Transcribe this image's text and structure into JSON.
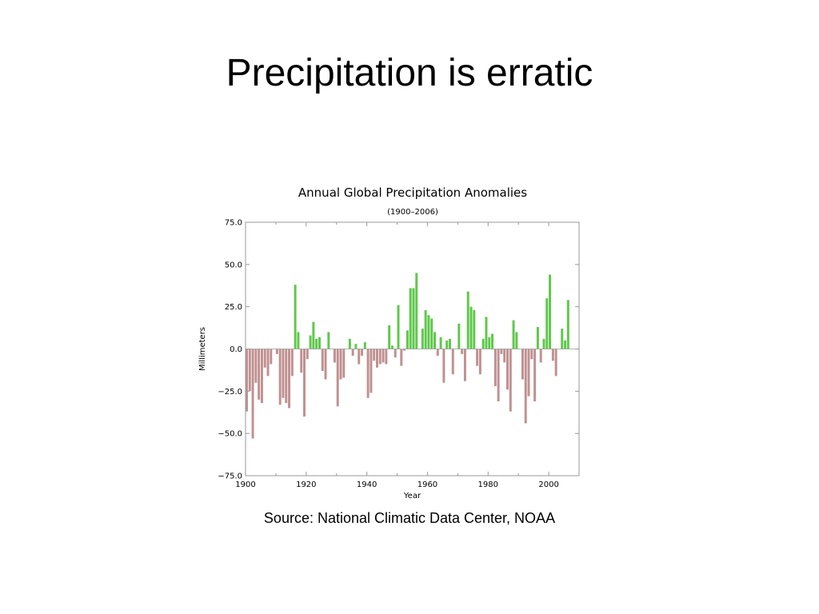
{
  "slide": {
    "title": "Precipitation is erratic",
    "source": "Source: National Climatic Data Center, NOAA"
  },
  "colors": {
    "positive": "#5ec84a",
    "negative": "#c09090",
    "frame": "#999999"
  },
  "chart_data": {
    "type": "bar",
    "title": "Annual Global Precipitation Anomalies",
    "subtitle": "(1900–2006)",
    "xlabel": "Year",
    "ylabel": "Millimeters",
    "xlim": [
      1900,
      2010
    ],
    "ylim": [
      -75,
      75
    ],
    "x_ticks": [
      1900,
      1920,
      1940,
      1960,
      1980,
      2000
    ],
    "y_ticks": [
      "75.0",
      "50.0",
      "25.0",
      "0.0",
      "−25.0",
      "−50.0",
      "−75.0"
    ],
    "y_tick_values": [
      75,
      50,
      25,
      0,
      -25,
      -50,
      -75
    ],
    "grid": false,
    "x_start": 1900,
    "values": [
      -37,
      -25,
      -53,
      -20,
      -30,
      -32,
      -11,
      -16,
      -9,
      0,
      -3,
      -33,
      -29,
      -32,
      -35,
      -16,
      38,
      10,
      -14,
      -40,
      -6,
      8,
      16,
      6,
      7,
      -13,
      -18,
      10,
      0,
      -8,
      -34,
      -18,
      -17,
      0,
      6,
      -4,
      3,
      -9,
      -4,
      4,
      -29,
      -26,
      -7,
      -11,
      -9,
      -8,
      -9,
      14,
      2,
      -5,
      26,
      -10,
      -1,
      11,
      36,
      36,
      45,
      0,
      12,
      23,
      20,
      18,
      10,
      -4,
      7,
      -20,
      5,
      6,
      -15,
      0,
      15,
      -3,
      -19,
      34,
      25,
      23,
      -10,
      -15,
      6,
      19,
      7,
      9,
      -22,
      -31,
      -3,
      -8,
      -24,
      -37,
      17,
      10,
      0,
      -18,
      -44,
      -28,
      -6,
      -31,
      13,
      -8,
      6,
      30,
      44,
      -7,
      -16,
      0,
      12,
      5,
      29
    ]
  }
}
